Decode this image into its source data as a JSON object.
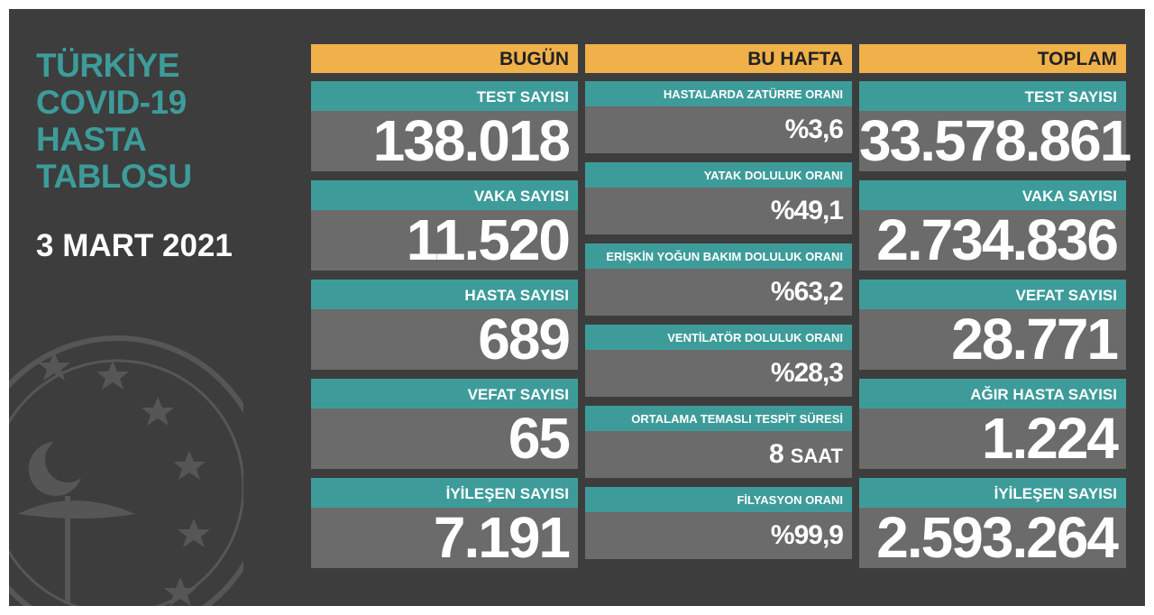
{
  "header": {
    "title_lines": [
      "TÜRKİYE",
      "COVID-19",
      "HASTA",
      "TABLOSU"
    ],
    "date": "3 MART 2021"
  },
  "columns": [
    {
      "title": "BUGÜN",
      "cards": [
        {
          "label": "TEST SAYISI",
          "value": "138.018"
        },
        {
          "label": "VAKA SAYISI",
          "value": "11.520"
        },
        {
          "label": "HASTA SAYISI",
          "value": "689"
        },
        {
          "label": "VEFAT SAYISI",
          "value": "65"
        },
        {
          "label": "İYİLEŞEN SAYISI",
          "value": "7.191"
        }
      ]
    },
    {
      "title": "BU HAFTA",
      "cards": [
        {
          "label": "HASTALARDA ZATÜRRE ORANI",
          "value": "%3,6"
        },
        {
          "label": "YATAK DOLULUK ORANI",
          "value": "%49,1"
        },
        {
          "label": "ERİŞKİN YOĞUN BAKIM DOLULUK ORANI",
          "value": "%63,2"
        },
        {
          "label": "VENTİLATÖR DOLULUK ORANI",
          "value": "%28,3"
        },
        {
          "label": "ORTALAMA TEMASLI TESPİT SÜRESİ",
          "value": "8",
          "unit": "SAAT"
        },
        {
          "label": "FİLYASYON ORANI",
          "value": "%99,9"
        }
      ]
    },
    {
      "title": "TOPLAM",
      "cards": [
        {
          "label": "TEST SAYISI",
          "value": "33.578.861"
        },
        {
          "label": "VAKA SAYISI",
          "value": "2.734.836"
        },
        {
          "label": "VEFAT SAYISI",
          "value": "28.771"
        },
        {
          "label": "AĞIR HASTA SAYISI",
          "value": "1.224"
        },
        {
          "label": "İYİLEŞEN SAYISI",
          "value": "2.593.264"
        }
      ]
    }
  ]
}
